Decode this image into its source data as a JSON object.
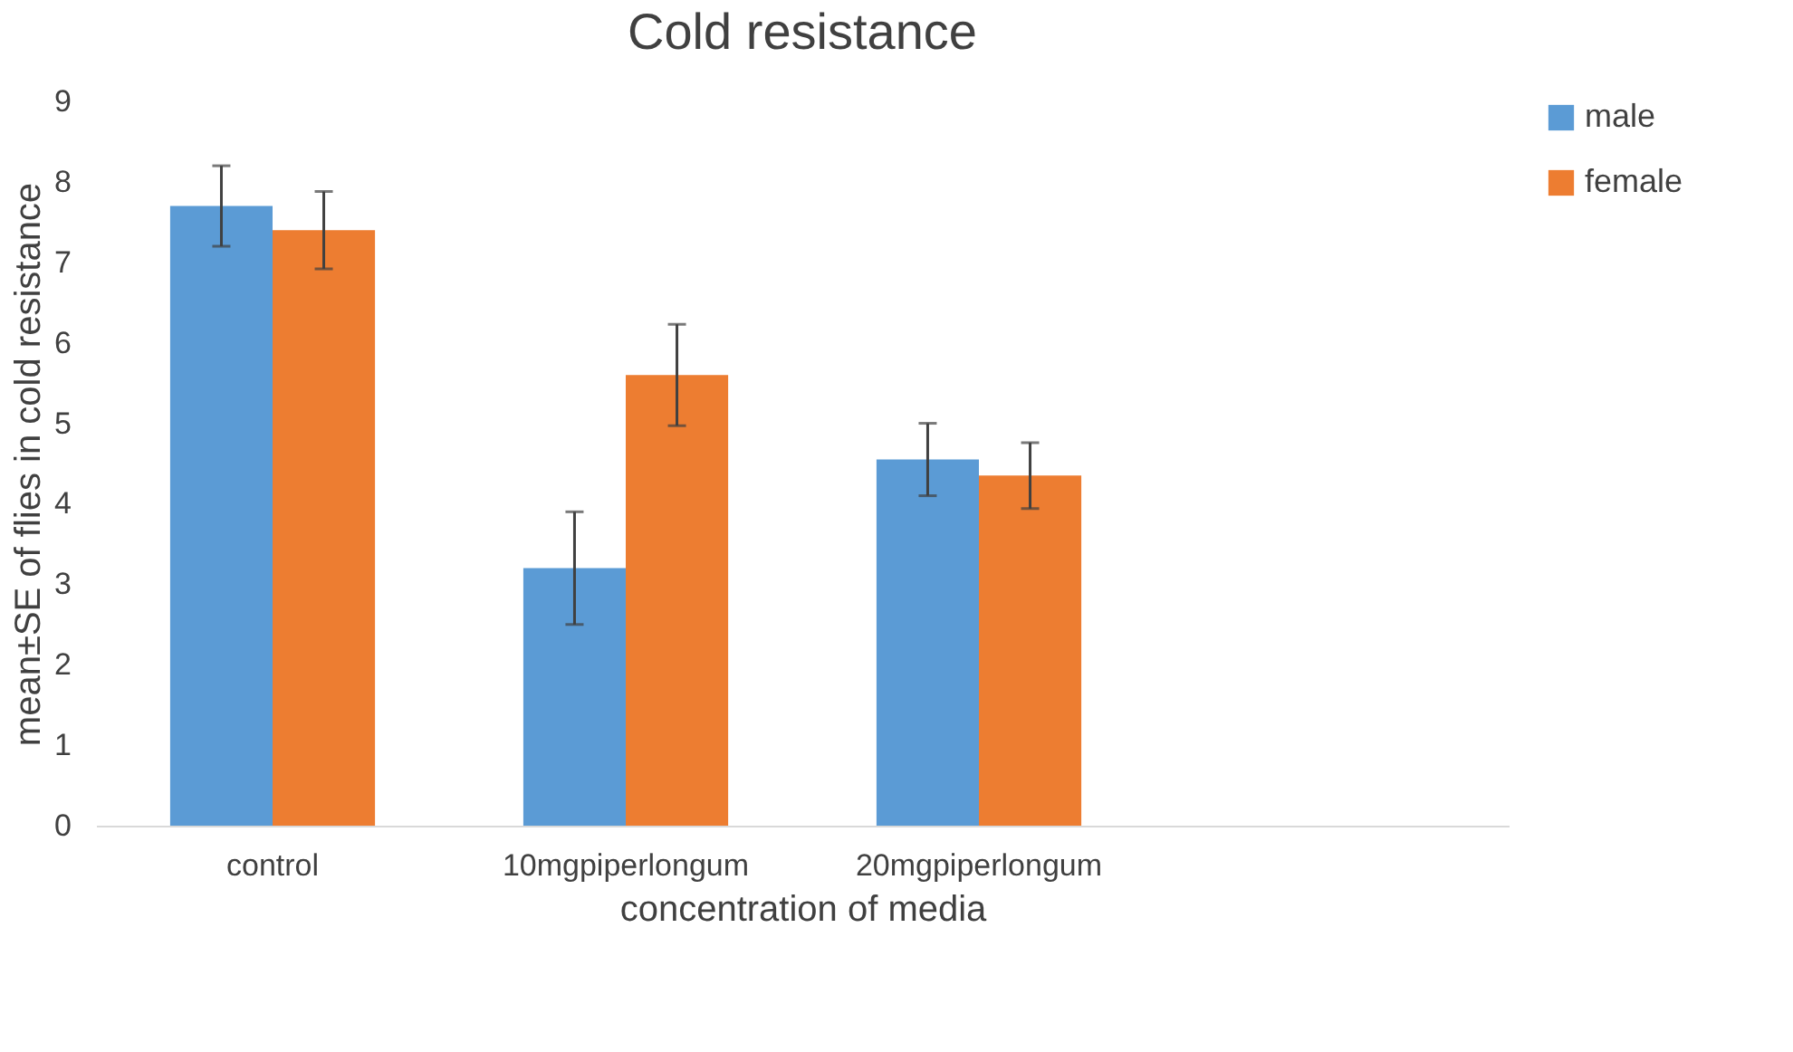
{
  "chart_data": {
    "type": "bar",
    "title": "Cold resistance",
    "xlabel": "concentration of media",
    "ylabel": "mean±SE of flies in cold resistance",
    "categories": [
      "control",
      "10mgpiperlongum",
      "20mgpiperlongum",
      null
    ],
    "series": [
      {
        "name": "male",
        "color": "#5b9bd5",
        "values": [
          7.7,
          3.2,
          4.55,
          null
        ],
        "errors": [
          0.5,
          0.7,
          0.45,
          null
        ]
      },
      {
        "name": "female",
        "color": "#ed7d31",
        "values": [
          7.4,
          5.6,
          4.35,
          null
        ],
        "errors": [
          0.48,
          0.63,
          0.41,
          null
        ]
      }
    ],
    "ylim": [
      0,
      9
    ],
    "yticks": [
      0,
      1,
      2,
      3,
      4,
      5,
      6,
      7,
      8,
      9
    ],
    "grid": false,
    "legend": "right"
  }
}
